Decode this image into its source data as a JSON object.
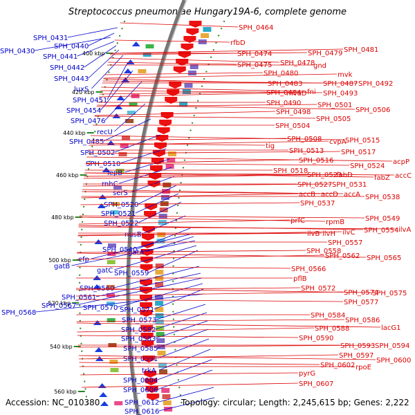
{
  "title": "Streptococcus pneumoniae Hungary19A-6, complete genome",
  "footer": {
    "accession": "Accession: NC_010380",
    "summary": "Topology: circular; Length: 2,245,615 bp; Genes: 2,222"
  },
  "colors": {
    "left_label": "#0000cc",
    "right_label": "#dd0000",
    "backbone": "#888888",
    "tick": "#228822"
  },
  "ticks": [
    "400 kbp",
    "420 kbp",
    "440 kbp",
    "460 kbp",
    "480 kbp",
    "500 kbp",
    "520 kbp",
    "540 kbp",
    "560 kbp"
  ],
  "left_labels": [
    "SPH_0431",
    "SPH_0440",
    "SPH_0430",
    "SPH_0441",
    "SPH_0442",
    "SPH_0443",
    "luxS",
    "SPH_0451",
    "SPH_0454",
    "SPH_0476",
    "recU",
    "SPH_0485",
    "SPH_0502",
    "SPH_0510",
    "lepB",
    "rnhC",
    "serS",
    "SPH_0520",
    "SPH_0521",
    "SPH_0522",
    "nusB",
    "SPH_0540",
    "efp",
    "gatA",
    "gatB",
    "gatC",
    "SPH_0559",
    "SPH_0560",
    "SPH_0561",
    "SPH_0567",
    "SPH_0570",
    "SPH_0571",
    "SPH_0568",
    "SPH_0573",
    "SPH_0582",
    "SPH_0583",
    "SPH_0585",
    "SPH_0591",
    "trkA",
    "SPH_0604",
    "SPH_0606",
    "SPH_0612",
    "SPH_0616"
  ],
  "right_labels": [
    "SPH_0464",
    "rfbD",
    "SPH_0474",
    "SPH_0479",
    "SPH_0481",
    "SPH_0478",
    "SPH_0475",
    "gnd",
    "SPH_0480",
    "mvk",
    "SPH_0483",
    "SPH_0487",
    "SPH_0492",
    "SPH_0484",
    "mvaD",
    "fni",
    "SPH_0493",
    "SPH_0490",
    "SPH_0501",
    "SPH_0498",
    "SPH_0506",
    "SPH_0505",
    "SPH_0504",
    "SPH_0508",
    "cvpA",
    "SPH_0515",
    "tig",
    "SPH_0513",
    "SPH_0517",
    "SPH_0516",
    "acpP",
    "SPH_0524",
    "SPH_0518",
    "SPH_0523",
    "fabD",
    "fabZ",
    "accC",
    "SPH_0527",
    "SPH_0531",
    "accB",
    "accD",
    "accA",
    "SPH_0538",
    "SPH_0537",
    "prfC",
    "rpmB",
    "SPH_0549",
    "ilvB",
    "ilvH",
    "ilvC",
    "SPH_0554",
    "ilvA",
    "SPH_0557",
    "SPH_0558",
    "SPH_0562",
    "SPH_0565",
    "SPH_0566",
    "pflB",
    "SPH_0572",
    "SPH_0574",
    "SPH_0575",
    "SPH_0577",
    "SPH_0584",
    "SPH_0586",
    "SPH_0588",
    "lacG1",
    "SPH_0590",
    "SPH_0593",
    "SPH_0594",
    "SPH_0597",
    "SPH_0600",
    "SPH_0602",
    "rpoE",
    "pyrG",
    "SPH_0607"
  ]
}
